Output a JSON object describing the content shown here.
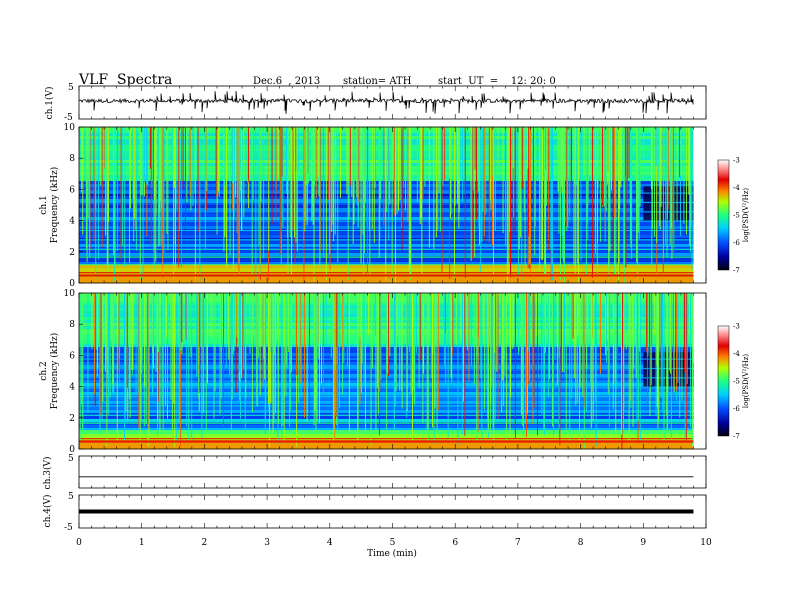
{
  "header": {
    "title": "VLF  Spectra",
    "date": "Dec.6  , 2013",
    "station": "station= ATH",
    "start": "start  UT  =    12: 20: 0"
  },
  "chart_data": [
    {
      "type": "line",
      "name": "ch1-waveform",
      "ylabel": "ch.1(V)",
      "ylim": [
        -5,
        5
      ],
      "yticks": [
        "5",
        "-5"
      ],
      "xlim": [
        0,
        10
      ],
      "data_extent_min": 9.8,
      "baseline_v": 0.5
    },
    {
      "type": "heatmap",
      "name": "ch1-spectrogram",
      "ylabel": "Frequency (kHz)",
      "channel_label": "ch.1",
      "ylim": [
        0,
        10
      ],
      "yticks": [
        "0",
        "2",
        "4",
        "6",
        "8",
        "10"
      ],
      "xlim": [
        0,
        10
      ],
      "colorbar": {
        "label": "log(PSD(V²/Hz)",
        "range": [
          -7,
          -3
        ],
        "ticks": [
          "-7",
          "-6",
          "-5",
          "-4",
          "-3"
        ]
      }
    },
    {
      "type": "heatmap",
      "name": "ch2-spectrogram",
      "ylabel": "Frequency (kHz)",
      "channel_label": "ch.2",
      "ylim": [
        0,
        10
      ],
      "yticks": [
        "0",
        "2",
        "4",
        "6",
        "8",
        "10"
      ],
      "xlim": [
        0,
        10
      ],
      "colorbar": {
        "label": "log(PSD(V²/Hz)",
        "range": [
          -7,
          -3
        ],
        "ticks": [
          "-7",
          "-6",
          "-5",
          "-4",
          "-3"
        ]
      }
    },
    {
      "type": "line",
      "name": "ch3-waveform",
      "ylabel": "ch.3(V)",
      "ylim": [
        -5,
        5
      ],
      "yticks": [
        "5",
        "-5"
      ],
      "xlim": [
        0,
        10
      ],
      "baseline_v": -1.5
    },
    {
      "type": "line",
      "name": "ch4-waveform",
      "ylabel": "ch.4(V)",
      "ylim": [
        -5,
        5
      ],
      "yticks": [
        "5",
        "-5"
      ],
      "xlim": [
        0,
        10
      ],
      "baseline_v": 0
    }
  ],
  "xaxis": {
    "label": "Time  (min)",
    "ticks": [
      "0",
      "1",
      "2",
      "3",
      "4",
      "5",
      "6",
      "7",
      "8",
      "9",
      "10"
    ]
  }
}
